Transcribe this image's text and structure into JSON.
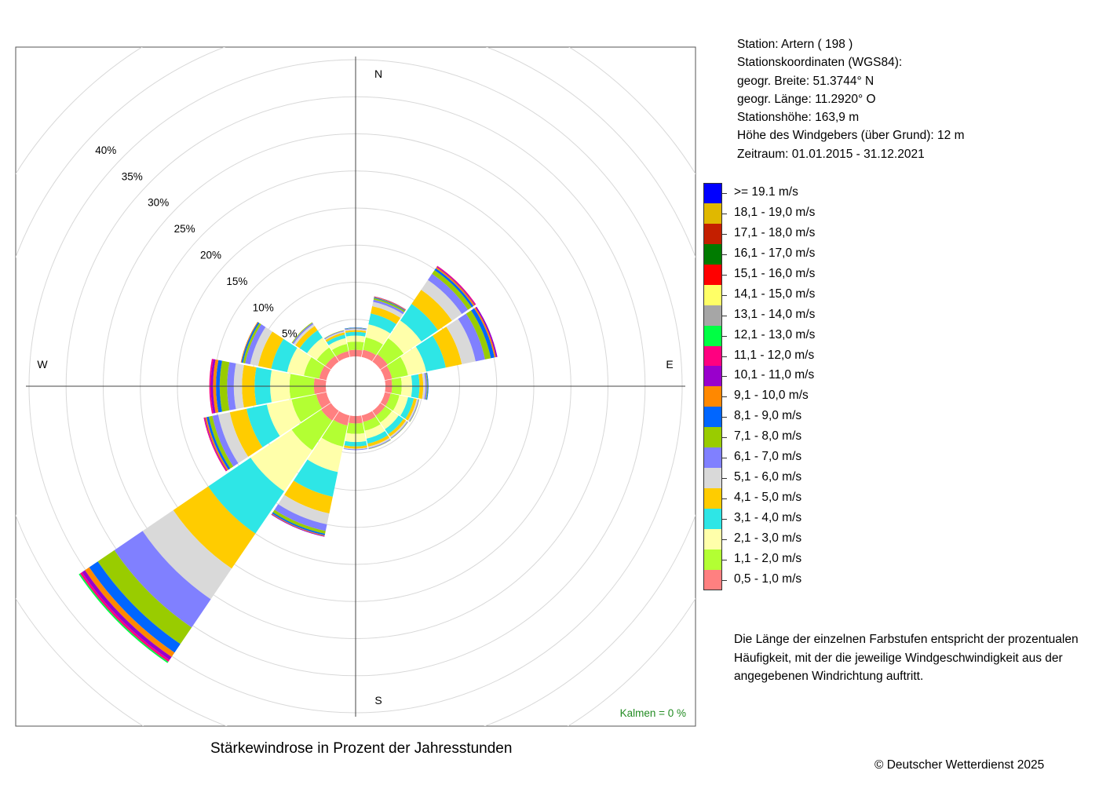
{
  "station_info": [
    "Station:  Artern  ( 198 )",
    "Stationskoordinaten (WGS84):",
    "geogr. Breite: 51.3744° N",
    "geogr. Länge: 11.2920° O",
    "Stationshöhe: 163,9 m",
    "Höhe des Windgebers (über Grund): 12 m",
    "Zeitraum: 01.01.2015 - 31.12.2021"
  ],
  "legend": [
    {
      "label": ">= 19.1 m/s",
      "color": "#0000ff"
    },
    {
      "label": "18,1 - 19,0 m/s",
      "color": "#e0b800"
    },
    {
      "label": "17,1 - 18,0 m/s",
      "color": "#c41f00"
    },
    {
      "label": "16,1 - 17,0 m/s",
      "color": "#007b00"
    },
    {
      "label": "15,1 - 16,0 m/s",
      "color": "#ff0000"
    },
    {
      "label": "14,1 - 15,0 m/s",
      "color": "#ffff66"
    },
    {
      "label": "13,1 - 14,0 m/s",
      "color": "#a6a6a6"
    },
    {
      "label": "12,1 - 13,0 m/s",
      "color": "#00ff44"
    },
    {
      "label": "11,1 - 12,0 m/s",
      "color": "#ff0080"
    },
    {
      "label": "10,1 - 11,0 m/s",
      "color": "#9900cc"
    },
    {
      "label": "9,1 - 10,0 m/s",
      "color": "#ff8800"
    },
    {
      "label": "8,1 - 9,0 m/s",
      "color": "#0066ff"
    },
    {
      "label": "7,1 - 8,0 m/s",
      "color": "#99cc00"
    },
    {
      "label": "6,1 - 7,0 m/s",
      "color": "#8080ff"
    },
    {
      "label": "5,1 - 6,0 m/s",
      "color": "#d9d9d9"
    },
    {
      "label": "4,1 - 5,0 m/s",
      "color": "#ffcc00"
    },
    {
      "label": "3,1 - 4,0 m/s",
      "color": "#2ee6e6"
    },
    {
      "label": "2,1 - 3,0 m/s",
      "color": "#ffffaa"
    },
    {
      "label": "1,1 - 2,0 m/s",
      "color": "#b3ff33"
    },
    {
      "label": "0,5 - 1,0 m/s",
      "color": "#ff8080"
    }
  ],
  "note": "Die Länge der einzelnen Farbstufen entspricht der prozentualen Häufigkeit, mit der die jeweilige Windgeschwindigkeit aus der angegebenen Windrichtung auftritt.",
  "caption": "Stärkewindrose in Prozent der Jahresstunden",
  "copyright": "© Deutscher Wetterdienst  2025",
  "calm_label": "Kalmen  =  0 %",
  "calm_color": "#228b22",
  "chart_data": {
    "type": "wind_rose",
    "title": "Stärkewindrose in Prozent der Jahresstunden",
    "unit": "%",
    "directions": [
      "N",
      "NNE",
      "NE",
      "ENE",
      "E",
      "ESE",
      "SE",
      "SSE",
      "S",
      "SSW",
      "SW",
      "WSW",
      "W",
      "WNW",
      "NW",
      "NNW"
    ],
    "direction_labels": [
      "N",
      "E",
      "S",
      "W"
    ],
    "radial_ticks": [
      5,
      10,
      15,
      20,
      25,
      30,
      35,
      40
    ],
    "radial_tick_labels": [
      "5%",
      "10%",
      "15%",
      "20%",
      "25%",
      "30%",
      "35%",
      "40%"
    ],
    "speed_classes": [
      "0,5 - 1,0 m/s",
      "1,1 - 2,0 m/s",
      "2,1 - 3,0 m/s",
      "3,1 - 4,0 m/s",
      "4,1 - 5,0 m/s",
      "5,1 - 6,0 m/s",
      "6,1 - 7,0 m/s",
      "7,1 - 8,0 m/s",
      "8,1 - 9,0 m/s",
      "9,1 - 10,0 m/s",
      "10,1 - 11,0 m/s",
      "11,1 - 12,0 m/s",
      "12,1 - 13,0 m/s",
      "13,1 - 14,0 m/s",
      "14,1 - 15,0 m/s",
      "15,1 - 16,0 m/s",
      "16,1 - 17,0 m/s",
      "17,1 - 18,0 m/s",
      "18,1 - 19,0 m/s",
      ">= 19.1 m/s"
    ],
    "cumulative": [
      {
        "dir": "N",
        "bounds": [
          0.9,
          2.0,
          2.8,
          3.3,
          3.55,
          3.7,
          3.8,
          3.85,
          3.9
        ]
      },
      {
        "dir": "NNE",
        "bounds": [
          1.0,
          2.7,
          4.5,
          6.0,
          7.0,
          7.6,
          7.9,
          8.1,
          8.2,
          8.3,
          8.35
        ]
      },
      {
        "dir": "NE",
        "bounds": [
          1.2,
          3.8,
          6.7,
          9.4,
          11.7,
          13.3,
          14.3,
          14.9,
          15.2,
          15.4,
          15.5,
          15.6
        ]
      },
      {
        "dir": "ENE",
        "bounds": [
          1.0,
          3.2,
          5.7,
          8.4,
          10.6,
          12.5,
          13.8,
          14.6,
          15.1,
          15.3,
          15.5
        ]
      },
      {
        "dir": "E",
        "bounds": [
          0.9,
          2.2,
          3.6,
          4.6,
          5.1,
          5.4,
          5.6,
          5.7,
          5.8
        ]
      },
      {
        "dir": "ESE",
        "bounds": [
          0.8,
          2.0,
          3.2,
          4.0,
          4.4,
          4.6,
          4.7,
          4.75
        ]
      },
      {
        "dir": "SE",
        "bounds": [
          0.8,
          1.9,
          3.0,
          3.8,
          4.2,
          4.4,
          4.5,
          4.55
        ]
      },
      {
        "dir": "SSE",
        "bounds": [
          0.9,
          2.1,
          3.2,
          3.9,
          4.3,
          4.5,
          4.6,
          4.65
        ]
      },
      {
        "dir": "S",
        "bounds": [
          1.0,
          2.4,
          3.5,
          4.1,
          4.4,
          4.5,
          4.6
        ]
      },
      {
        "dir": "SSW",
        "bounds": [
          1.4,
          4.3,
          7.8,
          11.2,
          13.5,
          15.0,
          15.9,
          16.3,
          16.5,
          16.6,
          16.7
        ]
      },
      {
        "dir": "SW",
        "bounds": [
          1.6,
          6.4,
          13.1,
          20.0,
          25.7,
          30.7,
          35.3,
          38.0,
          39.4,
          40.1,
          40.6,
          40.9,
          41.1
        ]
      },
      {
        "dir": "WSW",
        "bounds": [
          1.4,
          4.8,
          8.2,
          11.0,
          13.3,
          14.9,
          15.7,
          16.2,
          16.5,
          16.7,
          16.8,
          16.9
        ]
      },
      {
        "dir": "W",
        "bounds": [
          1.6,
          4.9,
          7.5,
          9.6,
          11.3,
          12.4,
          13.3,
          14.3,
          14.8,
          15.2,
          15.5,
          15.7
        ]
      },
      {
        "dir": "WNW",
        "bounds": [
          1.0,
          3.1,
          5.4,
          7.6,
          9.4,
          10.5,
          11.2,
          11.5,
          11.7,
          11.8
        ]
      },
      {
        "dir": "NW",
        "bounds": [
          0.9,
          2.3,
          3.9,
          5.1,
          5.8,
          6.1,
          6.3,
          6.4
        ]
      },
      {
        "dir": "NNW",
        "bounds": [
          0.8,
          1.8,
          2.6,
          3.1,
          3.4,
          3.55,
          3.65,
          3.7
        ]
      }
    ],
    "grid": true,
    "calm_percent": 0,
    "legend_position": "right"
  }
}
